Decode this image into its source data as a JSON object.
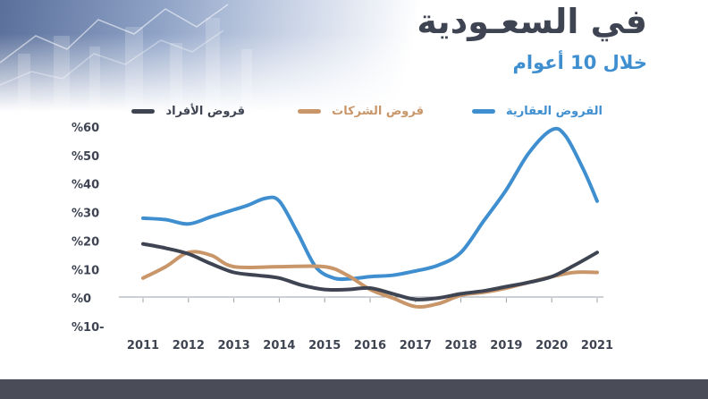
{
  "title": "في السعـودية",
  "subtitle": "خلال 10 أعوام",
  "colors": {
    "title": "#3e4452",
    "subtitle": "#3f8fd0",
    "real_estate": "#3f8fd0",
    "companies": "#c9966a",
    "individuals": "#3e4452",
    "footer": "#4a4d57"
  },
  "legend": {
    "real_estate": "القروض العقارية",
    "companies": "قروض الشركات",
    "individuals": "قروض الأفراد"
  },
  "chart_data": {
    "type": "line",
    "title": "",
    "xlabel": "",
    "ylabel": "",
    "categories": [
      "2011",
      "2012",
      "2013",
      "2014",
      "2015",
      "2016",
      "2017",
      "2018",
      "2019",
      "2020",
      "2021"
    ],
    "y_tick_labels": [
      "%60",
      "%50",
      "%40",
      "%30",
      "%20",
      "%10",
      "%0",
      "%10-"
    ],
    "y_ticks": [
      60,
      50,
      40,
      30,
      20,
      10,
      0,
      -10
    ],
    "ylim": [
      -10,
      60
    ],
    "grid": false,
    "legend_position": "top",
    "series": [
      {
        "key": "real_estate",
        "name": "القروض العقارية",
        "color": "#3f8fd0",
        "x": [
          2011,
          2011.5,
          2012,
          2012.5,
          2013,
          2013.3,
          2013.7,
          2014,
          2014.4,
          2014.8,
          2015.2,
          2015.6,
          2016,
          2016.5,
          2017,
          2017.5,
          2018,
          2018.5,
          2019,
          2019.5,
          2020,
          2020.3,
          2020.7,
          2021
        ],
        "values": [
          28,
          27.5,
          26,
          28.5,
          31,
          32.5,
          35,
          34,
          23,
          11,
          7,
          6.8,
          7.5,
          8,
          9.5,
          11.5,
          16,
          27,
          38,
          51,
          59,
          57,
          45,
          34
        ]
      },
      {
        "key": "companies",
        "name": "قروض الشركات",
        "color": "#c9966a",
        "x": [
          2011,
          2011.5,
          2012,
          2012.5,
          2013,
          2014,
          2015,
          2015.5,
          2016,
          2016.5,
          2017,
          2017.5,
          2018,
          2018.5,
          2019,
          2019.5,
          2020,
          2020.5,
          2021
        ],
        "values": [
          7,
          11,
          16,
          15,
          11,
          11,
          11,
          8,
          3,
          0,
          -3,
          -2,
          1,
          2,
          3.5,
          5.5,
          7.5,
          9,
          9
        ]
      },
      {
        "key": "individuals",
        "name": "قروض الأفراد",
        "color": "#3e4452",
        "x": [
          2011,
          2011.5,
          2012,
          2012.5,
          2013,
          2013.5,
          2014,
          2014.5,
          2015,
          2015.5,
          2016,
          2016.5,
          2017,
          2017.5,
          2018,
          2018.5,
          2019,
          2019.5,
          2020,
          2020.5,
          2021
        ],
        "values": [
          19,
          17.5,
          15.5,
          12,
          9,
          8,
          7,
          4.5,
          3,
          3,
          3.5,
          1.5,
          -0.5,
          0,
          1.5,
          2.5,
          4,
          5.5,
          7.5,
          11.5,
          16
        ]
      }
    ]
  }
}
